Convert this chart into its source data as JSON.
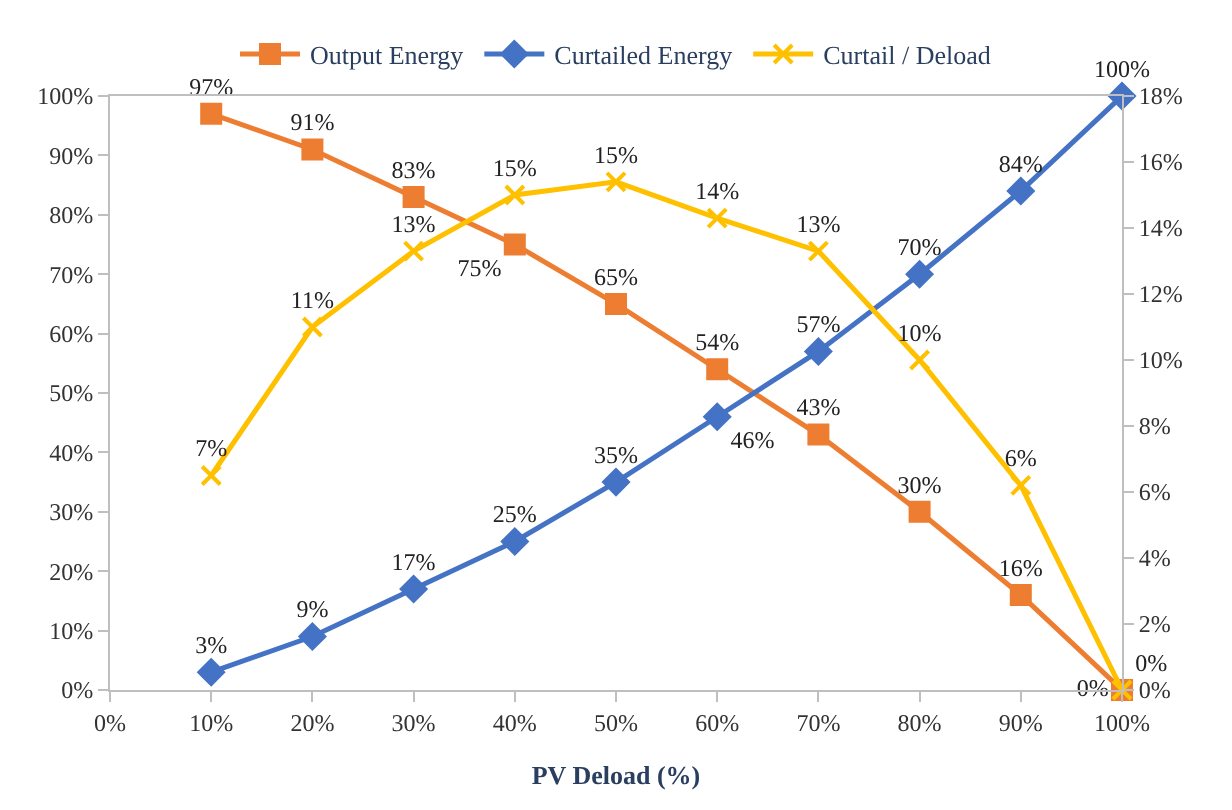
{
  "chart_data": {
    "type": "line",
    "xlabel": "PV Deload (%)",
    "x": [
      10,
      20,
      30,
      40,
      50,
      60,
      70,
      80,
      90,
      100
    ],
    "series": [
      {
        "name": "Output Energy",
        "color": "#ed7d31",
        "marker": "square",
        "values": [
          97,
          91,
          83,
          75,
          65,
          54,
          43,
          30,
          16,
          0
        ],
        "value_labels": [
          "97%",
          "91%",
          "83%",
          "75%",
          "65%",
          "54%",
          "43%",
          "30%",
          "16%",
          "0%"
        ]
      },
      {
        "name": "Curtailed Energy",
        "color": "#4472c4",
        "marker": "diamond",
        "values": [
          3,
          9,
          17,
          25,
          35,
          46,
          57,
          70,
          84,
          100
        ],
        "value_labels": [
          "3%",
          "9%",
          "17%",
          "25%",
          "35%",
          "46%",
          "57%",
          "70%",
          "84%",
          "100%"
        ]
      },
      {
        "name": "Curtail / Deload",
        "color": "#ffc000",
        "marker": "cross",
        "axis": "y2",
        "values": [
          6.5,
          11,
          13.3,
          15,
          15.4,
          14.3,
          13.3,
          10,
          6.2,
          0
        ],
        "value_labels": [
          "7%",
          "11%",
          "13%",
          "15%",
          "15%",
          "14%",
          "13%",
          "10%",
          "6%",
          "0%"
        ]
      }
    ],
    "xlim": [
      0,
      100
    ],
    "xticks": [
      {
        "value": 0,
        "label": "0%"
      },
      {
        "value": 10,
        "label": "10%"
      },
      {
        "value": 20,
        "label": "20%"
      },
      {
        "value": 30,
        "label": "30%"
      },
      {
        "value": 40,
        "label": "40%"
      },
      {
        "value": 50,
        "label": "50%"
      },
      {
        "value": 60,
        "label": "60%"
      },
      {
        "value": 70,
        "label": "70%"
      },
      {
        "value": 80,
        "label": "80%"
      },
      {
        "value": 90,
        "label": "90%"
      },
      {
        "value": 100,
        "label": "100%"
      }
    ],
    "ylim": [
      0,
      100
    ],
    "yticks": [
      {
        "value": 0,
        "label": "0%"
      },
      {
        "value": 10,
        "label": "10%"
      },
      {
        "value": 20,
        "label": "20%"
      },
      {
        "value": 30,
        "label": "30%"
      },
      {
        "value": 40,
        "label": "40%"
      },
      {
        "value": 50,
        "label": "50%"
      },
      {
        "value": 60,
        "label": "60%"
      },
      {
        "value": 70,
        "label": "70%"
      },
      {
        "value": 80,
        "label": "80%"
      },
      {
        "value": 90,
        "label": "90%"
      },
      {
        "value": 100,
        "label": "100%"
      }
    ],
    "y2lim": [
      0,
      18
    ],
    "y2ticks": [
      {
        "value": 0,
        "label": "0%"
      },
      {
        "value": 2,
        "label": "2%"
      },
      {
        "value": 4,
        "label": "4%"
      },
      {
        "value": 6,
        "label": "6%"
      },
      {
        "value": 8,
        "label": "8%"
      },
      {
        "value": 10,
        "label": "10%"
      },
      {
        "value": 12,
        "label": "12%"
      },
      {
        "value": 14,
        "label": "14%"
      },
      {
        "value": 16,
        "label": "16%"
      },
      {
        "value": 18,
        "label": "18%"
      }
    ],
    "legend": "top",
    "line_style": "solid"
  }
}
